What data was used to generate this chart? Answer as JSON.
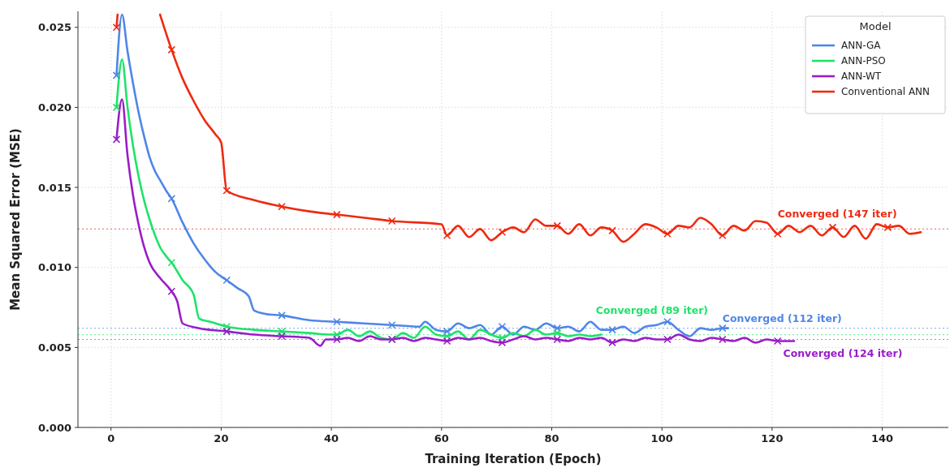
{
  "chart_data": {
    "type": "line",
    "xlabel": "Training Iteration (Epoch)",
    "ylabel": "Mean Squared Error (MSE)",
    "legend_title": "Model",
    "legend": "top right",
    "grid": true,
    "marker": "cross",
    "xlim": [
      -6,
      152
    ],
    "xticks": [
      0,
      20,
      40,
      60,
      80,
      100,
      120,
      140
    ],
    "ylim": [
      0,
      0.026
    ],
    "yticks": [
      {
        "value": 0,
        "label": "0.000"
      },
      {
        "value": 0.005,
        "label": "0.005"
      },
      {
        "value": 0.01,
        "label": "0.010"
      },
      {
        "value": 0.015,
        "label": "0.015"
      },
      {
        "value": 0.02,
        "label": "0.020"
      },
      {
        "value": 0.025,
        "label": "0.025"
      }
    ],
    "series": [
      {
        "name": "ANN-GA",
        "color": "#4f86e8",
        "marker": "none",
        "x": [
          1,
          2,
          3,
          4,
          5,
          6,
          7,
          8,
          9,
          10,
          11,
          13,
          15,
          17,
          19,
          21,
          23,
          25,
          26,
          28,
          31,
          36,
          41,
          46,
          51,
          56,
          57,
          59,
          61,
          63,
          65,
          67,
          69,
          71,
          73,
          75,
          77,
          79,
          81,
          83,
          85,
          87,
          89,
          91,
          93,
          95,
          97,
          99,
          101,
          103,
          105,
          107,
          109,
          111,
          112
        ],
        "values": [
          0.022,
          0.0258,
          0.0235,
          0.0215,
          0.0197,
          0.0182,
          0.0169,
          0.016,
          0.0154,
          0.0148,
          0.0143,
          0.0128,
          0.0115,
          0.0105,
          0.0097,
          0.0092,
          0.0087,
          0.0082,
          0.0073,
          0.0071,
          0.007,
          0.0067,
          0.0066,
          0.0065,
          0.0064,
          0.0063,
          0.0066,
          0.0061,
          0.006,
          0.0065,
          0.0062,
          0.0064,
          0.0058,
          0.0063,
          0.0058,
          0.0063,
          0.0061,
          0.0065,
          0.0062,
          0.0063,
          0.006,
          0.0066,
          0.0061,
          0.0061,
          0.0063,
          0.0059,
          0.0063,
          0.0064,
          0.0066,
          0.0061,
          0.0057,
          0.0062,
          0.0061,
          0.0062,
          0.0062
        ]
      },
      {
        "name": "ANN-PSO",
        "color": "#1ee36a",
        "marker": "none",
        "x": [
          1,
          2,
          3,
          4,
          5,
          6,
          7,
          8,
          9,
          10,
          11,
          13,
          15,
          16,
          18,
          21,
          26,
          31,
          36,
          40,
          41,
          43,
          45,
          47,
          49,
          51,
          53,
          55,
          57,
          59,
          61,
          63,
          65,
          67,
          69,
          71,
          73,
          75,
          77,
          79,
          81,
          83,
          85,
          87,
          89
        ],
        "values": [
          0.02,
          0.023,
          0.02,
          0.0176,
          0.0157,
          0.0142,
          0.013,
          0.012,
          0.0112,
          0.0107,
          0.0103,
          0.0092,
          0.0083,
          0.0068,
          0.0066,
          0.0063,
          0.0061,
          0.006,
          0.0059,
          0.0058,
          0.0058,
          0.0061,
          0.0057,
          0.006,
          0.0056,
          0.0055,
          0.0059,
          0.0056,
          0.0063,
          0.0058,
          0.0057,
          0.006,
          0.0055,
          0.0061,
          0.0058,
          0.0056,
          0.0059,
          0.0057,
          0.0061,
          0.0058,
          0.0059,
          0.0057,
          0.0058,
          0.0057,
          0.0058
        ]
      },
      {
        "name": "ANN-WT",
        "color": "#9a1cc9",
        "marker": "none",
        "x": [
          1,
          2,
          3,
          4,
          5,
          6,
          7,
          9,
          11,
          12,
          13,
          16,
          21,
          26,
          31,
          36,
          38,
          39,
          41,
          43,
          45,
          47,
          49,
          51,
          53,
          55,
          57,
          59,
          61,
          63,
          65,
          67,
          69,
          71,
          73,
          75,
          77,
          79,
          81,
          83,
          85,
          87,
          89,
          91,
          93,
          95,
          97,
          99,
          101,
          103,
          105,
          107,
          109,
          111,
          113,
          115,
          117,
          119,
          121,
          123,
          124
        ],
        "values": [
          0.018,
          0.0205,
          0.017,
          0.0145,
          0.0127,
          0.0113,
          0.0103,
          0.0093,
          0.0085,
          0.0079,
          0.0065,
          0.0062,
          0.006,
          0.0058,
          0.0057,
          0.0056,
          0.0051,
          0.0055,
          0.0055,
          0.0056,
          0.0054,
          0.0057,
          0.0055,
          0.0055,
          0.0056,
          0.0054,
          0.0056,
          0.0055,
          0.0054,
          0.0056,
          0.0055,
          0.0056,
          0.0054,
          0.0053,
          0.0055,
          0.0057,
          0.0055,
          0.0056,
          0.0055,
          0.0054,
          0.0056,
          0.0055,
          0.0056,
          0.0053,
          0.0055,
          0.0054,
          0.0056,
          0.0055,
          0.0055,
          0.0058,
          0.0055,
          0.0054,
          0.0056,
          0.0055,
          0.0054,
          0.0056,
          0.0053,
          0.0055,
          0.0054,
          0.0054,
          0.0054
        ]
      },
      {
        "name": "Conventional ANN",
        "color": "#ee2a10",
        "marker": "none",
        "x": [
          1,
          1.2,
          5,
          8.9,
          11,
          13,
          15,
          17,
          19,
          20,
          21,
          26,
          31,
          36,
          41,
          46,
          51,
          60,
          61,
          63,
          65,
          67,
          69,
          71,
          73,
          75,
          77,
          79,
          81,
          83,
          85,
          87,
          89,
          91,
          93,
          95,
          97,
          99,
          101,
          103,
          105,
          107,
          109,
          111,
          113,
          115,
          117,
          119,
          121,
          123,
          125,
          127,
          129,
          131,
          133,
          135,
          137,
          139,
          141,
          143,
          145,
          147
        ],
        "values": [
          0.025,
          0.0258,
          null,
          0.0258,
          0.0236,
          0.0218,
          0.0204,
          0.0192,
          0.0183,
          0.0178,
          0.0148,
          0.0142,
          0.0138,
          0.0135,
          0.0133,
          0.0131,
          0.0129,
          0.0127,
          0.012,
          0.0126,
          0.0119,
          0.0124,
          0.0117,
          0.0122,
          0.0125,
          0.0122,
          0.013,
          0.0126,
          0.0126,
          0.0121,
          0.0127,
          0.012,
          0.0125,
          0.0123,
          0.0116,
          0.0121,
          0.0127,
          0.0125,
          0.0121,
          0.0126,
          0.0125,
          0.0131,
          0.0127,
          0.012,
          0.0126,
          0.0123,
          0.0129,
          0.0128,
          0.0121,
          0.0126,
          0.0122,
          0.0126,
          0.012,
          0.0125,
          0.0119,
          0.0126,
          0.0118,
          0.0127,
          0.0125,
          0.0126,
          0.0121,
          0.0122
        ]
      },
      {
        "type": "scatter",
        "color": "#4f86e8",
        "x": [
          1,
          11,
          21,
          31,
          41,
          51,
          61,
          71,
          81,
          91,
          101,
          111
        ],
        "values": [
          0.022,
          0.0143,
          0.0092,
          0.007,
          0.0066,
          0.0064,
          0.006,
          0.0063,
          0.0062,
          0.0061,
          0.0066,
          0.0062
        ]
      },
      {
        "type": "scatter",
        "color": "#1ee36a",
        "x": [
          1,
          11,
          21,
          31,
          41,
          51,
          61,
          71,
          81
        ],
        "values": [
          0.02,
          0.0103,
          0.0063,
          0.006,
          0.0058,
          0.0055,
          0.0057,
          0.0056,
          0.0059
        ]
      },
      {
        "type": "scatter",
        "color": "#9a1cc9",
        "x": [
          1,
          11,
          21,
          31,
          41,
          51,
          61,
          71,
          81,
          91,
          101,
          111,
          121
        ],
        "values": [
          0.018,
          0.0085,
          0.006,
          0.0057,
          0.0055,
          0.0055,
          0.0054,
          0.0053,
          0.0055,
          0.0053,
          0.0055,
          0.0055,
          0.0054
        ]
      },
      {
        "type": "scatter",
        "color": "#ee2a10",
        "x": [
          1,
          11,
          21,
          31,
          41,
          51,
          61,
          71,
          81,
          91,
          101,
          111,
          121,
          131,
          141
        ],
        "values": [
          0.025,
          0.0236,
          0.0148,
          0.0138,
          0.0133,
          0.0129,
          0.012,
          0.0122,
          0.0126,
          0.0123,
          0.0121,
          0.012,
          0.0121,
          0.0125,
          0.0125
        ]
      }
    ],
    "ref_lines": [
      {
        "axis": "y",
        "value": 0.0124,
        "color": "#ee2a10",
        "line_style": "dotted"
      },
      {
        "axis": "y",
        "value": 0.0062,
        "color": "#4f86e8",
        "line_style": "dotted"
      },
      {
        "axis": "y",
        "value": 0.0058,
        "color": "#1ee36a",
        "line_style": "dotted"
      },
      {
        "axis": "y",
        "value": 0.0055,
        "color": "#9a1cc9",
        "line_style": "dotted"
      }
    ],
    "annotations": [
      {
        "text": "Converged (147 iter)",
        "x": 121,
        "y": 0.0124
      },
      {
        "text": "Converged (112 iter)",
        "x": 111,
        "y": 0.0062
      },
      {
        "text": "Converged (89 iter)",
        "x": 88,
        "y": 0.0058
      },
      {
        "text": "Converged (124 iter)",
        "x": 122,
        "y": 0.0055
      }
    ]
  }
}
